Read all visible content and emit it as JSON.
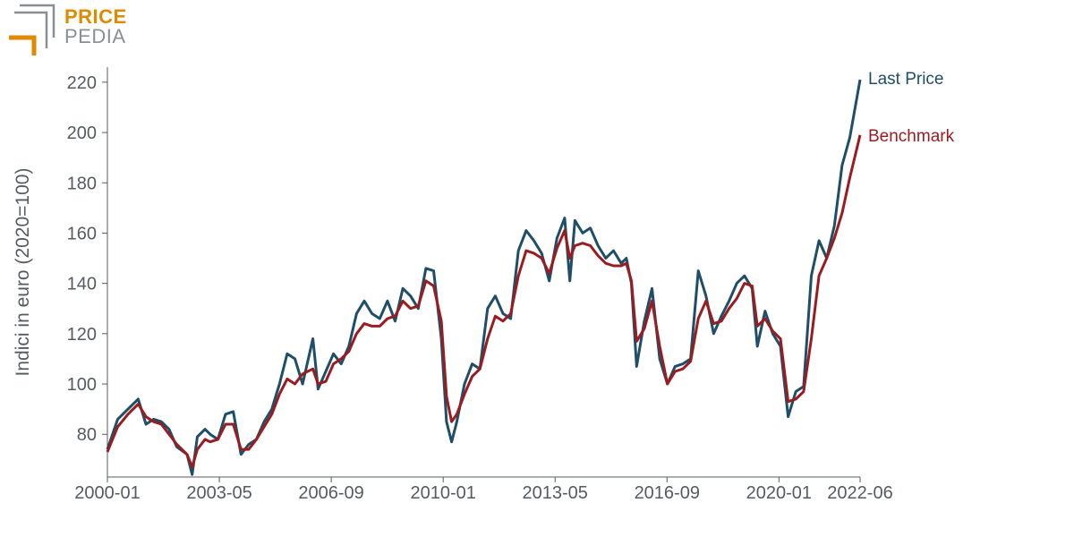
{
  "logo": {
    "text_top": "PRICE",
    "text_bottom": "PEDIA",
    "colors": {
      "accent": "#e08a00",
      "gray": "#8a8f94"
    }
  },
  "chart_data": {
    "type": "line",
    "title": "",
    "xlabel": "",
    "ylabel": "Indici in euro (2020=100)",
    "x_start": "2000-01",
    "x_end": "2022-06",
    "x_ticks": [
      "2000-01",
      "2003-05",
      "2006-09",
      "2010-01",
      "2013-05",
      "2016-09",
      "2020-01",
      "2022-06"
    ],
    "y_ticks": [
      80,
      100,
      120,
      140,
      160,
      180,
      200,
      220
    ],
    "ylim": [
      63,
      226
    ],
    "grid": false,
    "legend": "right end of lines",
    "series": [
      {
        "name": "Last Price",
        "color": "#1f4e68",
        "points": [
          [
            "2000-01",
            74
          ],
          [
            "2000-05",
            86
          ],
          [
            "2000-09",
            90
          ],
          [
            "2001-01",
            94
          ],
          [
            "2001-04",
            84
          ],
          [
            "2001-07",
            86
          ],
          [
            "2001-10",
            85
          ],
          [
            "2002-01",
            82
          ],
          [
            "2002-04",
            75
          ],
          [
            "2002-08",
            72
          ],
          [
            "2002-10",
            64
          ],
          [
            "2002-12",
            79
          ],
          [
            "2003-03",
            82
          ],
          [
            "2003-05",
            80
          ],
          [
            "2003-08",
            78
          ],
          [
            "2003-11",
            88
          ],
          [
            "2004-02",
            89
          ],
          [
            "2004-05",
            72
          ],
          [
            "2004-08",
            76
          ],
          [
            "2004-11",
            78
          ],
          [
            "2005-02",
            85
          ],
          [
            "2005-05",
            90
          ],
          [
            "2005-08",
            100
          ],
          [
            "2005-11",
            112
          ],
          [
            "2006-02",
            110
          ],
          [
            "2006-05",
            100
          ],
          [
            "2006-09",
            118
          ],
          [
            "2006-11",
            98
          ],
          [
            "2007-02",
            105
          ],
          [
            "2007-05",
            112
          ],
          [
            "2007-08",
            108
          ],
          [
            "2007-11",
            115
          ],
          [
            "2008-02",
            128
          ],
          [
            "2008-05",
            133
          ],
          [
            "2008-08",
            128
          ],
          [
            "2008-11",
            126
          ],
          [
            "2009-02",
            133
          ],
          [
            "2009-05",
            125
          ],
          [
            "2009-08",
            138
          ],
          [
            "2009-11",
            135
          ],
          [
            "2010-02",
            130
          ],
          [
            "2010-05",
            146
          ],
          [
            "2010-08",
            145
          ],
          [
            "2010-11",
            118
          ],
          [
            "2011-01",
            85
          ],
          [
            "2011-03",
            77
          ],
          [
            "2011-05",
            85
          ],
          [
            "2011-08",
            100
          ],
          [
            "2011-11",
            108
          ],
          [
            "2012-02",
            106
          ],
          [
            "2012-05",
            130
          ],
          [
            "2012-08",
            135
          ],
          [
            "2012-11",
            128
          ],
          [
            "2013-02",
            126
          ],
          [
            "2013-05",
            153
          ],
          [
            "2013-08",
            161
          ],
          [
            "2013-11",
            157
          ],
          [
            "2014-02",
            152
          ],
          [
            "2014-05",
            141
          ],
          [
            "2014-08",
            158
          ],
          [
            "2014-11",
            166
          ],
          [
            "2015-01",
            141
          ],
          [
            "2015-03",
            165
          ],
          [
            "2015-06",
            160
          ],
          [
            "2015-09",
            162
          ],
          [
            "2015-12",
            155
          ],
          [
            "2016-03",
            150
          ],
          [
            "2016-06",
            153
          ],
          [
            "2016-09",
            148
          ],
          [
            "2016-11",
            150
          ],
          [
            "2017-01",
            140
          ],
          [
            "2017-03",
            107
          ],
          [
            "2017-06",
            125
          ],
          [
            "2017-09",
            138
          ],
          [
            "2017-12",
            110
          ],
          [
            "2018-03",
            100
          ],
          [
            "2018-06",
            107
          ],
          [
            "2018-09",
            108
          ],
          [
            "2018-12",
            110
          ],
          [
            "2019-03",
            145
          ],
          [
            "2019-06",
            135
          ],
          [
            "2019-09",
            120
          ],
          [
            "2019-12",
            127
          ],
          [
            "2020-03",
            133
          ],
          [
            "2020-06",
            140
          ],
          [
            "2020-09",
            143
          ],
          [
            "2020-12",
            138
          ],
          [
            "2021-02",
            115
          ],
          [
            "2021-05",
            129
          ],
          [
            "2021-08",
            120
          ],
          [
            "2021-11",
            115
          ],
          [
            "2022-02",
            87
          ],
          [
            "2022-05",
            97
          ],
          [
            "2022-08",
            99
          ],
          [
            "2022-11",
            143
          ],
          [
            "2023-02",
            157
          ],
          [
            "2023-05",
            150
          ],
          [
            "2023-08",
            163
          ],
          [
            "2023-11",
            187
          ],
          [
            "2024-02",
            198
          ],
          [
            "2024-06",
            221
          ]
        ]
      },
      {
        "name": "Benchmark",
        "color": "#9b1c20",
        "points": [
          [
            "2000-01",
            73
          ],
          [
            "2000-05",
            83
          ],
          [
            "2000-09",
            88
          ],
          [
            "2001-01",
            92
          ],
          [
            "2001-04",
            87
          ],
          [
            "2001-07",
            85
          ],
          [
            "2001-10",
            84
          ],
          [
            "2002-01",
            80
          ],
          [
            "2002-04",
            76
          ],
          [
            "2002-08",
            72
          ],
          [
            "2002-10",
            67
          ],
          [
            "2002-12",
            74
          ],
          [
            "2003-03",
            78
          ],
          [
            "2003-05",
            77
          ],
          [
            "2003-08",
            78
          ],
          [
            "2003-11",
            84
          ],
          [
            "2004-02",
            84
          ],
          [
            "2004-05",
            74
          ],
          [
            "2004-08",
            74
          ],
          [
            "2004-11",
            78
          ],
          [
            "2005-02",
            83
          ],
          [
            "2005-05",
            88
          ],
          [
            "2005-08",
            96
          ],
          [
            "2005-11",
            102
          ],
          [
            "2006-02",
            100
          ],
          [
            "2006-05",
            104
          ],
          [
            "2006-09",
            106
          ],
          [
            "2006-11",
            100
          ],
          [
            "2007-02",
            101
          ],
          [
            "2007-05",
            108
          ],
          [
            "2007-08",
            110
          ],
          [
            "2007-11",
            113
          ],
          [
            "2008-02",
            120
          ],
          [
            "2008-05",
            124
          ],
          [
            "2008-08",
            123
          ],
          [
            "2008-11",
            123
          ],
          [
            "2009-02",
            126
          ],
          [
            "2009-05",
            127
          ],
          [
            "2009-08",
            133
          ],
          [
            "2009-11",
            130
          ],
          [
            "2010-02",
            131
          ],
          [
            "2010-05",
            141
          ],
          [
            "2010-08",
            139
          ],
          [
            "2010-11",
            125
          ],
          [
            "2011-01",
            95
          ],
          [
            "2011-03",
            85
          ],
          [
            "2011-05",
            88
          ],
          [
            "2011-08",
            96
          ],
          [
            "2011-11",
            103
          ],
          [
            "2012-02",
            106
          ],
          [
            "2012-05",
            118
          ],
          [
            "2012-08",
            127
          ],
          [
            "2012-11",
            125
          ],
          [
            "2013-02",
            128
          ],
          [
            "2013-05",
            143
          ],
          [
            "2013-08",
            153
          ],
          [
            "2013-11",
            152
          ],
          [
            "2014-02",
            150
          ],
          [
            "2014-05",
            144
          ],
          [
            "2014-08",
            154
          ],
          [
            "2014-11",
            161
          ],
          [
            "2015-01",
            150
          ],
          [
            "2015-03",
            155
          ],
          [
            "2015-06",
            156
          ],
          [
            "2015-09",
            155
          ],
          [
            "2015-12",
            151
          ],
          [
            "2016-03",
            148
          ],
          [
            "2016-06",
            147
          ],
          [
            "2016-09",
            147
          ],
          [
            "2016-11",
            148
          ],
          [
            "2017-01",
            141
          ],
          [
            "2017-03",
            117
          ],
          [
            "2017-06",
            122
          ],
          [
            "2017-09",
            133
          ],
          [
            "2017-12",
            115
          ],
          [
            "2018-03",
            100
          ],
          [
            "2018-06",
            105
          ],
          [
            "2018-09",
            106
          ],
          [
            "2018-12",
            109
          ],
          [
            "2019-03",
            126
          ],
          [
            "2019-06",
            133
          ],
          [
            "2019-09",
            124
          ],
          [
            "2019-12",
            125
          ],
          [
            "2020-03",
            130
          ],
          [
            "2020-06",
            134
          ],
          [
            "2020-09",
            140
          ],
          [
            "2020-12",
            139
          ],
          [
            "2021-02",
            123
          ],
          [
            "2021-05",
            126
          ],
          [
            "2021-08",
            121
          ],
          [
            "2021-11",
            118
          ],
          [
            "2022-02",
            93
          ],
          [
            "2022-05",
            94
          ],
          [
            "2022-08",
            97
          ],
          [
            "2022-11",
            118
          ],
          [
            "2023-02",
            143
          ],
          [
            "2023-05",
            150
          ],
          [
            "2023-08",
            158
          ],
          [
            "2023-11",
            168
          ],
          [
            "2024-02",
            182
          ],
          [
            "2024-06",
            199
          ]
        ]
      }
    ]
  }
}
